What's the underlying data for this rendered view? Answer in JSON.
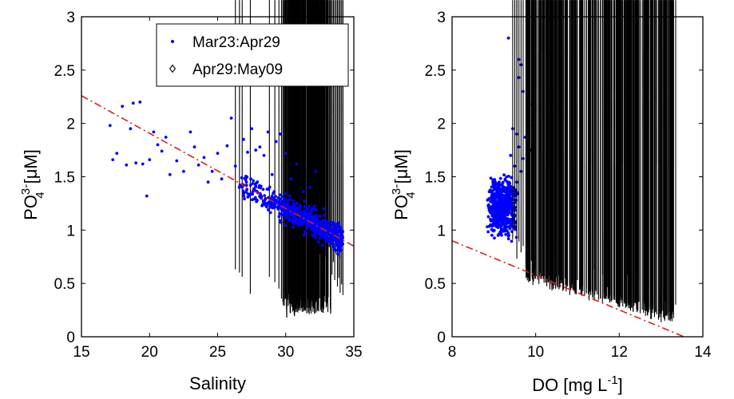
{
  "chart_data": [
    {
      "type": "scatter",
      "xlabel": "Salinity",
      "ylabel_main": "PO",
      "ylabel_sup": "3-",
      "ylabel_sub": "4",
      "ylabel_units": "[μM]",
      "xlim": [
        15,
        35
      ],
      "ylim": [
        0,
        3
      ],
      "xticks": [
        "15",
        "20",
        "25",
        "30",
        "35"
      ],
      "yticks": [
        "0",
        "0.5",
        "1",
        "1.5",
        "2",
        "2.5",
        "3"
      ],
      "grid": false,
      "legend_position": "top-right",
      "fit_line": {
        "x": [
          15,
          35
        ],
        "y": [
          2.26,
          0.85
        ],
        "color": "#e41a1c",
        "style": "dash-dot"
      },
      "series": [
        {
          "name": "Mar23:Apr29",
          "marker": "dot",
          "color": "#0000ff",
          "points": [
            [
              17.1,
              1.98
            ],
            [
              17.3,
              1.66
            ],
            [
              17.6,
              1.72
            ],
            [
              18.0,
              2.16
            ],
            [
              18.3,
              1.61
            ],
            [
              18.6,
              1.95
            ],
            [
              18.8,
              2.19
            ],
            [
              19.0,
              1.63
            ],
            [
              19.3,
              2.2
            ],
            [
              19.5,
              1.62
            ],
            [
              19.8,
              1.32
            ],
            [
              20.0,
              1.66
            ],
            [
              20.3,
              1.92
            ],
            [
              20.6,
              1.8
            ],
            [
              20.9,
              1.74
            ],
            [
              21.2,
              1.87
            ],
            [
              21.5,
              1.52
            ],
            [
              22.0,
              1.65
            ],
            [
              22.5,
              1.55
            ],
            [
              23.0,
              1.92
            ],
            [
              23.3,
              1.78
            ],
            [
              23.6,
              1.61
            ],
            [
              24.0,
              1.68
            ],
            [
              24.3,
              1.45
            ],
            [
              24.6,
              1.55
            ],
            [
              25.0,
              1.72
            ],
            [
              25.3,
              1.48
            ],
            [
              25.7,
              1.79
            ],
            [
              26.0,
              2.05
            ],
            [
              26.3,
              1.6
            ],
            [
              26.6,
              1.4
            ],
            [
              26.9,
              1.85
            ],
            [
              27.2,
              1.73
            ],
            [
              27.5,
              1.95
            ],
            [
              27.8,
              1.75
            ],
            [
              28.1,
              1.78
            ],
            [
              28.4,
              1.7
            ],
            [
              28.7,
              1.92
            ],
            [
              29.0,
              1.52
            ],
            [
              29.3,
              1.83
            ],
            [
              29.6,
              1.9
            ],
            [
              30.0,
              1.72
            ],
            [
              30.4,
              1.48
            ],
            [
              30.8,
              1.62
            ],
            [
              31.3,
              1.36
            ],
            [
              31.8,
              1.4
            ],
            [
              32.2,
              1.55
            ],
            [
              32.8,
              1.2
            ]
          ],
          "cloud": {
            "x_range": [
              26.5,
              34.2
            ],
            "y_fit": [
              2.26,
              0.85
            ],
            "x_fit": [
              15,
              35
            ],
            "spread": 0.13,
            "count": 650
          }
        },
        {
          "name": "Apr29:May09",
          "marker": "diamond",
          "color": "#000000",
          "points": [
            [
              26.3,
              0.6
            ],
            [
              26.6,
              0.57
            ],
            [
              26.8,
              0.53
            ],
            [
              27.4,
              0.37
            ],
            [
              28.8,
              0.53
            ],
            [
              29.2,
              0.48
            ],
            [
              29.5,
              0.42
            ],
            [
              30.0,
              0.38
            ],
            [
              30.6,
              0.95
            ],
            [
              31.0,
              0.99
            ],
            [
              31.3,
              0.93
            ],
            [
              31.8,
              0.85
            ],
            [
              32.2,
              0.81
            ],
            [
              32.5,
              0.74
            ],
            [
              32.8,
              0.69
            ],
            [
              33.1,
              0.6
            ],
            [
              33.4,
              0.55
            ],
            [
              33.6,
              0.5
            ],
            [
              33.8,
              0.44
            ],
            [
              34.0,
              0.38
            ],
            [
              34.2,
              0.36
            ],
            [
              33.2,
              0.81
            ],
            [
              32.9,
              0.72
            ],
            [
              33.5,
              0.67
            ],
            [
              33.0,
              0.62
            ],
            [
              32.6,
              0.58
            ],
            [
              34.1,
              0.46
            ],
            [
              33.9,
              0.52
            ],
            [
              33.7,
              0.75
            ],
            [
              34.0,
              0.7
            ]
          ],
          "cloud": {
            "x_range": [
              28.5,
              34.2
            ],
            "y_range": [
              0.1,
              0.45
            ],
            "count": 220
          }
        }
      ]
    },
    {
      "type": "scatter",
      "xlabel_main": "DO [mg L",
      "xlabel_sup": "-1",
      "xlabel_end": "]",
      "ylabel_main": "PO",
      "ylabel_sup": "3-",
      "ylabel_sub": "4",
      "ylabel_units": "[μM]",
      "xlim": [
        8,
        14
      ],
      "ylim": [
        0,
        3
      ],
      "xticks": [
        "8",
        "10",
        "12",
        "14"
      ],
      "yticks": [
        "0",
        "0.5",
        "1",
        "1.5",
        "2",
        "2.5",
        "3"
      ],
      "grid": false,
      "fit_line": {
        "x": [
          8,
          13.55
        ],
        "y": [
          0.9,
          0.0
        ],
        "color": "#e41a1c",
        "style": "dash-dot"
      },
      "series": [
        {
          "name": "Mar23:Apr29",
          "marker": "dot",
          "color": "#0000ff",
          "points": [
            [
              9.35,
              2.8
            ],
            [
              9.6,
              2.6
            ],
            [
              9.65,
              2.55
            ],
            [
              9.6,
              2.43
            ],
            [
              9.7,
              2.3
            ],
            [
              9.95,
              2.2
            ],
            [
              9.92,
              2.18
            ],
            [
              9.85,
              1.98
            ],
            [
              9.75,
              1.87
            ],
            [
              9.8,
              1.82
            ],
            [
              9.9,
              1.75
            ],
            [
              9.55,
              1.9
            ],
            [
              9.6,
              1.78
            ],
            [
              9.45,
              1.95
            ],
            [
              9.7,
              1.67
            ],
            [
              9.4,
              1.7
            ],
            [
              9.5,
              1.6
            ],
            [
              9.65,
              1.55
            ]
          ],
          "cloud": {
            "x_range": [
              8.7,
              9.7
            ],
            "y_range": [
              0.82,
              1.62
            ],
            "count": 600
          }
        },
        {
          "name": "Apr29:May09",
          "marker": "diamond",
          "color": "#000000",
          "points": [
            [
              9.5,
              0.98
            ],
            [
              9.55,
              0.93
            ],
            [
              9.6,
              0.86
            ],
            [
              9.45,
              0.88
            ],
            [
              9.7,
              0.82
            ],
            [
              9.65,
              0.76
            ],
            [
              9.55,
              0.7
            ],
            [
              9.8,
              0.72
            ],
            [
              9.9,
              0.68
            ],
            [
              10.0,
              0.6
            ],
            [
              10.1,
              0.57
            ],
            [
              10.3,
              0.5
            ],
            [
              10.6,
              0.47
            ],
            [
              11.0,
              0.5
            ],
            [
              11.4,
              0.6
            ],
            [
              11.6,
              0.55
            ],
            [
              12.2,
              0.55
            ],
            [
              12.4,
              0.48
            ],
            [
              12.8,
              0.42
            ],
            [
              13.1,
              0.3
            ],
            [
              13.35,
              0.27
            ]
          ],
          "cloud": {
            "x_line": [
              9.8,
              13.3
            ],
            "y_line": [
              0.55,
              0.15
            ],
            "spread": 0.08,
            "count": 330
          }
        }
      ]
    }
  ]
}
